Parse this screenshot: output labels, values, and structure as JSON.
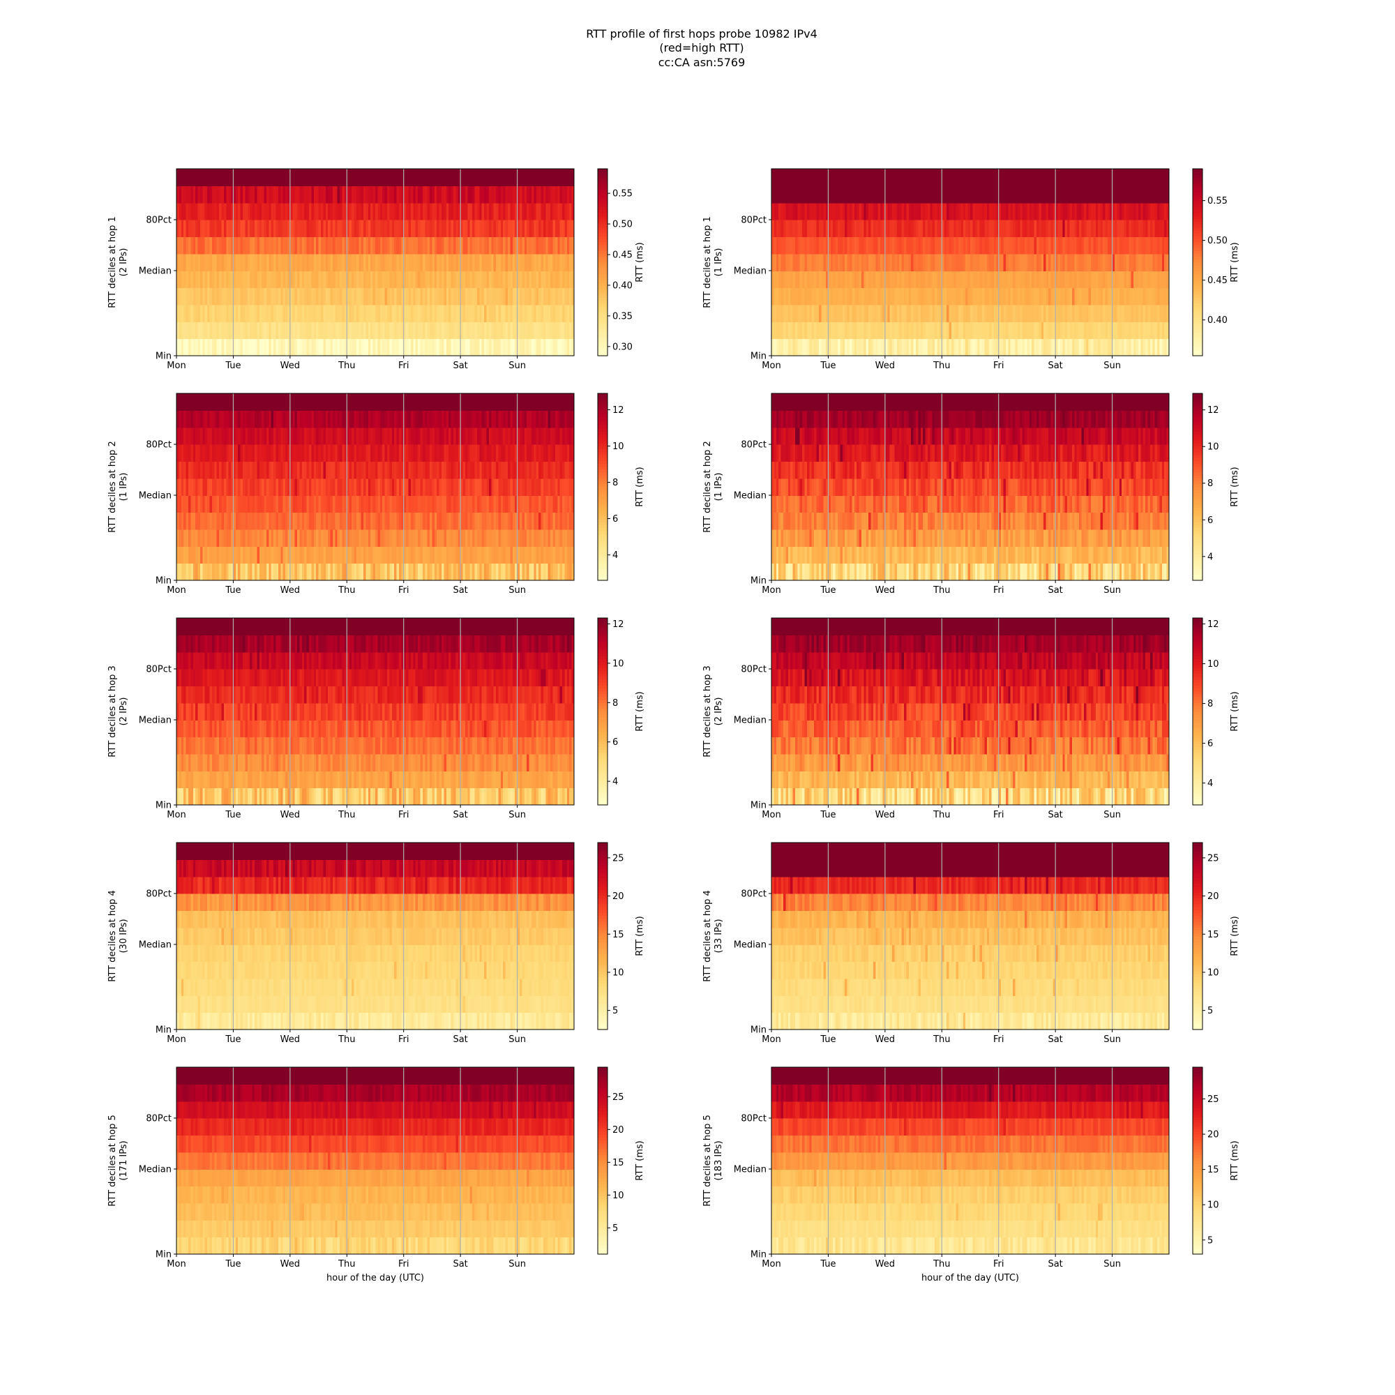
{
  "title_lines": [
    "RTT profile of first hops probe 10982 IPv4",
    "(red=high RTT)",
    "cc:CA asn:5769"
  ],
  "days": [
    "Mon",
    "Tue",
    "Wed",
    "Thu",
    "Fri",
    "Sat",
    "Sun"
  ],
  "y_ticks": [
    "80Pct",
    "Median",
    "Min"
  ],
  "colorbar_label": "RTT (ms)",
  "xlabel": "hour of the day (UTC)",
  "colormap": {
    "name": "YlOrRd",
    "stops": [
      "#ffffcc",
      "#ffeda0",
      "#fed976",
      "#feb24c",
      "#fd8d3c",
      "#fc4e2a",
      "#e31a1c",
      "#bd0026",
      "#800026"
    ]
  },
  "grid_color": "#b0b0b0",
  "chart_data": [
    {
      "type": "heatmap",
      "hop": 1,
      "ylabel": "RTT deciles at hop 1",
      "ips_label": "(2 IPs)",
      "cbar_range": [
        0.285,
        0.59
      ],
      "cbar_ticks": [
        "0.30",
        "0.35",
        "0.40",
        "0.45",
        "0.50",
        "0.55"
      ],
      "decile_rtt_ms": [
        0.3,
        0.345,
        0.365,
        0.38,
        0.395,
        0.41,
        0.455,
        0.49,
        0.51,
        0.535,
        0.6
      ],
      "variability": [
        0.025,
        0.01,
        0.01,
        0.01,
        0.01,
        0.012,
        0.015,
        0.015,
        0.015,
        0.02,
        0.0
      ],
      "spike_prob": 0.02,
      "spike_amp": 0.03,
      "seed": 11
    },
    {
      "type": "heatmap",
      "hop": 1,
      "ylabel": "RTT deciles at hop 1",
      "ips_label": "(1 IPs)",
      "cbar_range": [
        0.355,
        0.59
      ],
      "cbar_ticks": [
        "0.40",
        "0.45",
        "0.50",
        "0.55"
      ],
      "decile_rtt_ms": [
        0.38,
        0.415,
        0.43,
        0.445,
        0.455,
        0.48,
        0.5,
        0.52,
        0.54,
        0.6,
        0.6
      ],
      "variability": [
        0.02,
        0.006,
        0.006,
        0.006,
        0.006,
        0.008,
        0.008,
        0.01,
        0.012,
        0.0,
        0.0
      ],
      "spike_prob": 0.02,
      "spike_amp": 0.04,
      "seed": 12
    },
    {
      "type": "heatmap",
      "hop": 2,
      "ylabel": "RTT deciles at hop 2",
      "ips_label": "(1 IPs)",
      "cbar_range": [
        2.6,
        12.9
      ],
      "cbar_ticks": [
        "4",
        "6",
        "8",
        "10",
        "12"
      ],
      "decile_rtt_ms": [
        6.0,
        7.0,
        7.8,
        8.4,
        8.9,
        9.4,
        9.9,
        10.4,
        11.0,
        11.8,
        13.5
      ],
      "variability": [
        1.5,
        0.4,
        0.5,
        0.5,
        0.5,
        0.5,
        0.5,
        0.5,
        0.5,
        0.5,
        0.0
      ],
      "spike_prob": 0.04,
      "spike_amp": 1.5,
      "seed": 21
    },
    {
      "type": "heatmap",
      "hop": 2,
      "ylabel": "RTT deciles at hop 2",
      "ips_label": "(1 IPs)",
      "cbar_range": [
        2.7,
        12.9
      ],
      "cbar_ticks": [
        "4",
        "6",
        "8",
        "10",
        "12"
      ],
      "decile_rtt_ms": [
        5.2,
        6.3,
        7.3,
        8.0,
        8.6,
        9.2,
        9.8,
        10.5,
        11.2,
        12.2,
        13.5
      ],
      "variability": [
        1.8,
        0.6,
        0.7,
        0.7,
        0.7,
        0.7,
        0.7,
        0.7,
        0.6,
        0.5,
        0.0
      ],
      "spike_prob": 0.06,
      "spike_amp": 2.0,
      "seed": 22
    },
    {
      "type": "heatmap",
      "hop": 3,
      "ylabel": "RTT deciles at hop 3",
      "ips_label": "(2 IPs)",
      "cbar_range": [
        2.8,
        12.3
      ],
      "cbar_ticks": [
        "4",
        "6",
        "8",
        "10",
        "12"
      ],
      "decile_rtt_ms": [
        5.8,
        6.8,
        7.5,
        8.1,
        8.6,
        9.1,
        9.6,
        10.1,
        10.7,
        11.5,
        13.0
      ],
      "variability": [
        1.6,
        0.4,
        0.5,
        0.5,
        0.5,
        0.5,
        0.5,
        0.5,
        0.5,
        0.5,
        0.0
      ],
      "spike_prob": 0.04,
      "spike_amp": 1.5,
      "seed": 31
    },
    {
      "type": "heatmap",
      "hop": 3,
      "ylabel": "RTT deciles at hop 3",
      "ips_label": "(2 IPs)",
      "cbar_range": [
        2.9,
        12.3
      ],
      "cbar_ticks": [
        "4",
        "6",
        "8",
        "10",
        "12"
      ],
      "decile_rtt_ms": [
        5.0,
        6.3,
        7.2,
        7.9,
        8.5,
        9.0,
        9.6,
        10.2,
        10.9,
        11.6,
        13.0
      ],
      "variability": [
        1.8,
        0.6,
        0.7,
        0.7,
        0.7,
        0.7,
        0.7,
        0.7,
        0.6,
        0.5,
        0.0
      ],
      "spike_prob": 0.06,
      "spike_amp": 2.0,
      "seed": 32
    },
    {
      "type": "heatmap",
      "hop": 4,
      "ylabel": "RTT deciles at hop 4",
      "ips_label": "(30 IPs)",
      "cbar_range": [
        2.5,
        27.0
      ],
      "cbar_ticks": [
        "5",
        "10",
        "15",
        "20",
        "25"
      ],
      "decile_rtt_ms": [
        6.0,
        7.5,
        8.0,
        8.5,
        9.0,
        9.8,
        10.5,
        14.0,
        20.0,
        23.0,
        28.0
      ],
      "variability": [
        1.5,
        0.6,
        0.6,
        0.6,
        0.6,
        0.7,
        0.8,
        1.5,
        1.5,
        1.5,
        0.0
      ],
      "spike_prob": 0.03,
      "spike_amp": 3.0,
      "seed": 41
    },
    {
      "type": "heatmap",
      "hop": 4,
      "ylabel": "RTT deciles at hop 4",
      "ips_label": "(33 IPs)",
      "cbar_range": [
        2.5,
        27.0
      ],
      "cbar_ticks": [
        "5",
        "10",
        "15",
        "20",
        "25"
      ],
      "decile_rtt_ms": [
        6.0,
        7.5,
        8.2,
        8.8,
        9.4,
        10.5,
        11.5,
        15.0,
        20.0,
        28.0,
        28.0
      ],
      "variability": [
        1.6,
        0.7,
        0.7,
        0.7,
        0.8,
        0.9,
        1.0,
        1.5,
        1.2,
        0.0,
        0.0
      ],
      "spike_prob": 0.04,
      "spike_amp": 4.0,
      "seed": 42
    },
    {
      "type": "heatmap",
      "hop": 5,
      "ylabel": "RTT deciles at hop 5",
      "ips_label": "(171 IPs)",
      "cbar_range": [
        1.0,
        29.5
      ],
      "cbar_ticks": [
        "5",
        "10",
        "15",
        "20",
        "25"
      ],
      "decile_rtt_ms": [
        8.0,
        9.5,
        10.5,
        11.5,
        13.0,
        16.5,
        19.0,
        21.5,
        24.0,
        27.0,
        31.0
      ],
      "variability": [
        2.0,
        0.7,
        0.7,
        0.8,
        0.8,
        1.0,
        1.0,
        1.0,
        1.0,
        1.2,
        0.0
      ],
      "spike_prob": 0.03,
      "spike_amp": 3.0,
      "seed": 51
    },
    {
      "type": "heatmap",
      "hop": 5,
      "ylabel": "RTT deciles at hop 5",
      "ips_label": "(183 IPs)",
      "cbar_range": [
        3.0,
        29.5
      ],
      "cbar_ticks": [
        "5",
        "10",
        "15",
        "20",
        "25"
      ],
      "decile_rtt_ms": [
        7.5,
        8.5,
        9.5,
        10.5,
        12.0,
        15.0,
        17.5,
        20.0,
        23.0,
        26.5,
        31.0
      ],
      "variability": [
        1.8,
        0.7,
        0.7,
        0.8,
        0.8,
        1.0,
        1.0,
        1.0,
        1.0,
        1.2,
        0.0
      ],
      "spike_prob": 0.03,
      "spike_amp": 3.0,
      "seed": 52
    }
  ]
}
